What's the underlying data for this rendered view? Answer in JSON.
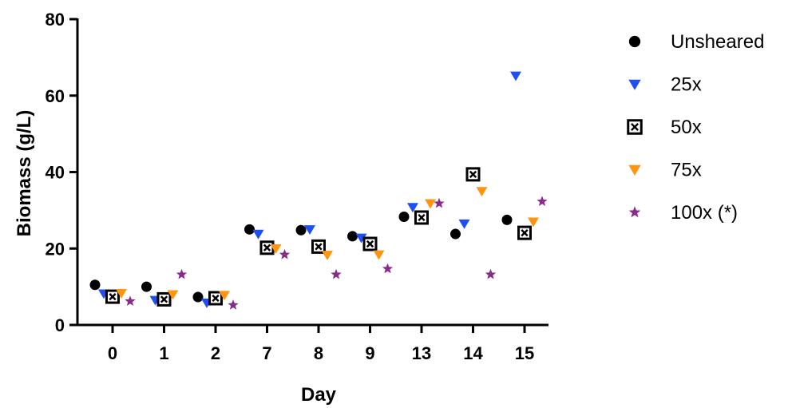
{
  "colors": {
    "unsheared": "#000000",
    "s25": "#1f4ff0",
    "s50": "#000000",
    "s75": "#ff9410",
    "s100": "#8a2b8a"
  },
  "chart_data": {
    "type": "scatter",
    "title": "",
    "xlabel": "Day",
    "ylabel": "Biomass (g/L)",
    "categories": [
      "0",
      "1",
      "2",
      "7",
      "8",
      "9",
      "13",
      "14",
      "15"
    ],
    "ylim": [
      0,
      80
    ],
    "yticks": [
      0,
      20,
      40,
      60,
      80
    ],
    "grid": false,
    "legend_position": "right",
    "series": [
      {
        "name": "Unsheared",
        "marker": "circle",
        "color": "#000000",
        "values": [
          10.5,
          10.0,
          7.3,
          25.0,
          24.8,
          23.2,
          28.3,
          23.8,
          27.5
        ]
      },
      {
        "name": "25x",
        "marker": "triangle-down",
        "color": "#1f4ff0",
        "values": [
          8.2,
          6.5,
          5.8,
          23.8,
          25.0,
          22.8,
          30.8,
          26.5,
          65.2
        ]
      },
      {
        "name": "50x",
        "marker": "boxed-x",
        "color": "#000000",
        "values": [
          7.4,
          6.7,
          7.0,
          20.2,
          20.5,
          21.2,
          28.1,
          39.4,
          24.1
        ]
      },
      {
        "name": "75x",
        "marker": "triangle-down",
        "color": "#ff9410",
        "values": [
          8.3,
          8.0,
          7.8,
          20.0,
          18.3,
          18.4,
          31.8,
          35.0,
          27.0
        ]
      },
      {
        "name": "100x (*)",
        "marker": "star",
        "color": "#8a2b8a",
        "values": [
          6.2,
          13.2,
          5.2,
          18.4,
          13.2,
          14.7,
          31.8,
          13.2,
          32.3
        ]
      }
    ]
  }
}
